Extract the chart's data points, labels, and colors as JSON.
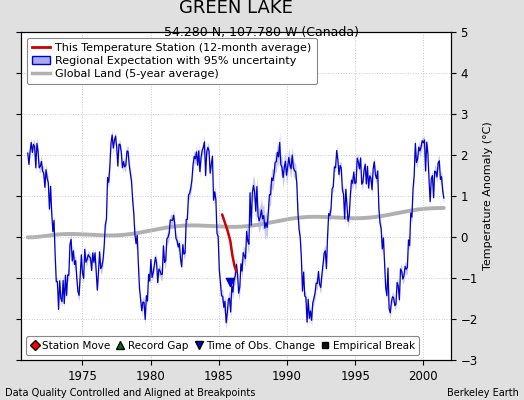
{
  "title": "GREEN LAKE",
  "subtitle": "54.280 N, 107.780 W (Canada)",
  "ylabel": "Temperature Anomaly (°C)",
  "xlabel_note": "Data Quality Controlled and Aligned at Breakpoints",
  "xlabel_credit": "Berkeley Earth",
  "ylim": [
    -3,
    5
  ],
  "yticks": [
    -3,
    -2,
    -1,
    0,
    1,
    2,
    3,
    4,
    5
  ],
  "xlim": [
    1970.5,
    2002.0
  ],
  "xticks": [
    1975,
    1980,
    1985,
    1990,
    1995,
    2000
  ],
  "background_color": "#e0e0e0",
  "plot_bg_color": "#ffffff",
  "blue_line_color": "#0000cc",
  "blue_fill_color": "#aaaaee",
  "red_line_color": "#cc0000",
  "gray_line_color": "#b0b0b0",
  "title_fontsize": 13,
  "subtitle_fontsize": 9,
  "legend_fontsize": 8,
  "axis_fontsize": 8,
  "tick_fontsize": 8.5,
  "red_seg_x": [
    1985.25,
    1985.45,
    1985.65,
    1985.85,
    1986.0,
    1986.15,
    1986.3
  ],
  "red_seg_y": [
    0.55,
    0.35,
    0.15,
    -0.1,
    -0.45,
    -0.7,
    -0.85
  ]
}
